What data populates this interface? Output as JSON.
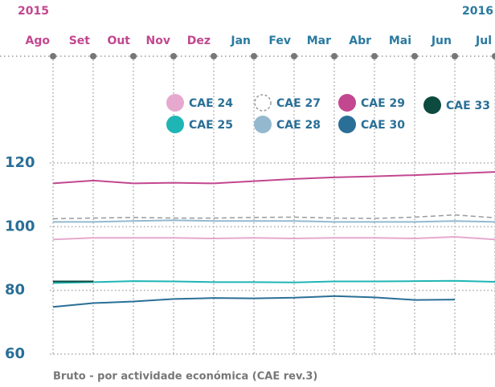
{
  "chart_data": {
    "type": "line",
    "years": [
      {
        "label": "2015",
        "color": "#c2478f"
      },
      {
        "label": "2016",
        "color": "#2a7aa0"
      }
    ],
    "categories": [
      "Ago",
      "Set",
      "Out",
      "Nov",
      "Dez",
      "Jan",
      "Fev",
      "Mar",
      "Abr",
      "Mai",
      "Jun",
      "Jul"
    ],
    "category_colors": [
      "#c2478f",
      "#c2478f",
      "#c2478f",
      "#c2478f",
      "#c2478f",
      "#2a7aa0",
      "#2a7aa0",
      "#2a7aa0",
      "#2a7aa0",
      "#2a7aa0",
      "#2a7aa0",
      "#2a7aa0"
    ],
    "series": [
      {
        "name": "CAE 24",
        "color": "#e6a9cd",
        "values": [
          96,
          96.5,
          96.5,
          96.5,
          96.3,
          96.5,
          96.3,
          96.5,
          96.5,
          96.3,
          96.8,
          96
        ]
      },
      {
        "name": "CAE 25",
        "color": "#1fb5b5",
        "values": [
          82.3,
          82.6,
          82.9,
          82.8,
          82.6,
          82.6,
          82.5,
          82.8,
          82.8,
          82.9,
          83,
          82.7
        ]
      },
      {
        "name": "CAE 27",
        "color": "#9a9a9a",
        "style": "dashed",
        "values": [
          102.5,
          102.7,
          102.9,
          102.7,
          102.7,
          102.9,
          103,
          102.7,
          102.6,
          103,
          103.7,
          102.8
        ]
      },
      {
        "name": "CAE 28",
        "color": "#94b9cf",
        "values": [
          101.5,
          101.5,
          101.8,
          102,
          101.8,
          101.8,
          101.8,
          101.5,
          101.5,
          101.5,
          101.8,
          101.5
        ]
      },
      {
        "name": "CAE 29",
        "color": "#c2478f",
        "values": [
          113.6,
          114.5,
          113.6,
          113.8,
          113.6,
          114.3,
          115,
          115.5,
          115.8,
          116.2,
          116.7,
          117.2
        ]
      },
      {
        "name": "CAE 30",
        "color": "#2a6f97",
        "values": [
          74.8,
          76,
          76.5,
          77.3,
          77.6,
          77.5,
          77.7,
          78.2,
          77.8,
          77,
          77.1,
          null
        ]
      },
      {
        "name": "CAE 33",
        "color": "#0d4a3f",
        "values": [
          82.8,
          82.8,
          null,
          null,
          null,
          null,
          null,
          null,
          null,
          null,
          null,
          null
        ]
      }
    ],
    "ylim": [
      60,
      120
    ],
    "yticks": [
      60,
      80,
      100,
      120
    ],
    "grid": true,
    "footnote": "Bruto - por actividade económica (CAE rev.3)"
  }
}
